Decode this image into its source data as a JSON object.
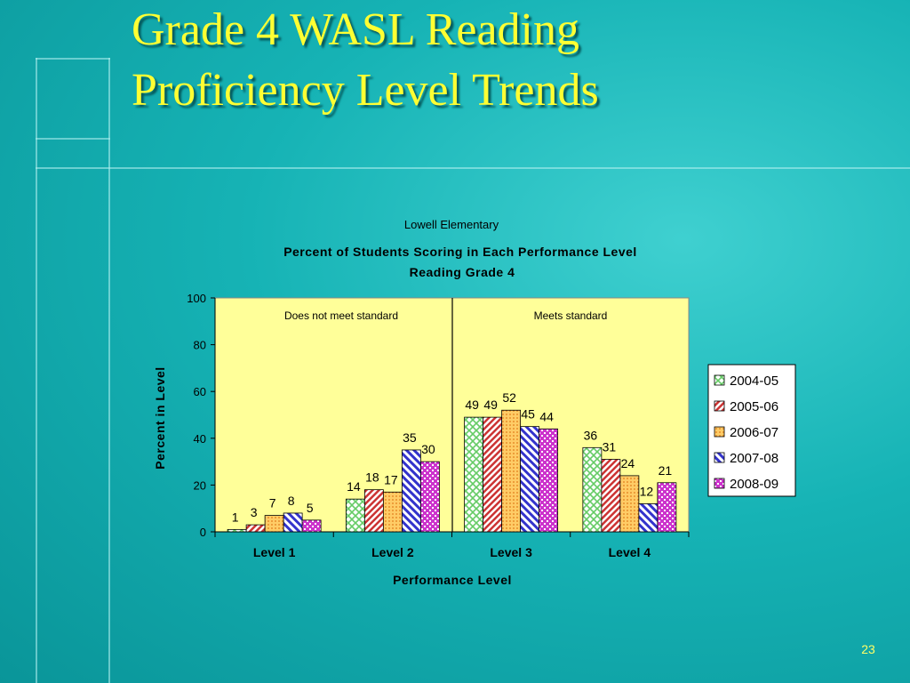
{
  "slide": {
    "title_line1": "Grade 4 WASL Reading",
    "title_line2": "Proficiency Level Trends",
    "page_number": "23"
  },
  "colors": {
    "title": "#ffff33",
    "plot_background": "#ffff99",
    "slide_background": "#16b3b5"
  },
  "chart_data": {
    "type": "bar",
    "subtitle": "Lowell Elementary",
    "title": "Percent of Students Scoring in Each Performance Level",
    "title_line2": "Reading Grade 4",
    "xlabel": "Performance Level",
    "ylabel": "Percent in Level",
    "ylim": [
      0,
      100
    ],
    "yticks": [
      0,
      20,
      40,
      60,
      80,
      100
    ],
    "grid": false,
    "legend_position": "right",
    "categories": [
      "Level 1",
      "Level 2",
      "Level 3",
      "Level 4"
    ],
    "annotations": [
      "Does not meet standard",
      "Meets standard"
    ],
    "series": [
      {
        "name": "2004-05",
        "values": [
          1,
          14,
          49,
          36
        ],
        "pattern": "green-diamond",
        "color": "#66cc66"
      },
      {
        "name": "2005-06",
        "values": [
          3,
          18,
          49,
          31
        ],
        "pattern": "red-diagonal",
        "color": "#cc3333"
      },
      {
        "name": "2006-07",
        "values": [
          7,
          17,
          52,
          24
        ],
        "pattern": "orange-dots",
        "color": "#ff9933"
      },
      {
        "name": "2007-08",
        "values": [
          8,
          35,
          45,
          12
        ],
        "pattern": "blue-diagonal",
        "color": "#3333cc"
      },
      {
        "name": "2008-09",
        "values": [
          5,
          30,
          44,
          21
        ],
        "pattern": "purple-checker",
        "color": "#cc33cc"
      }
    ]
  }
}
